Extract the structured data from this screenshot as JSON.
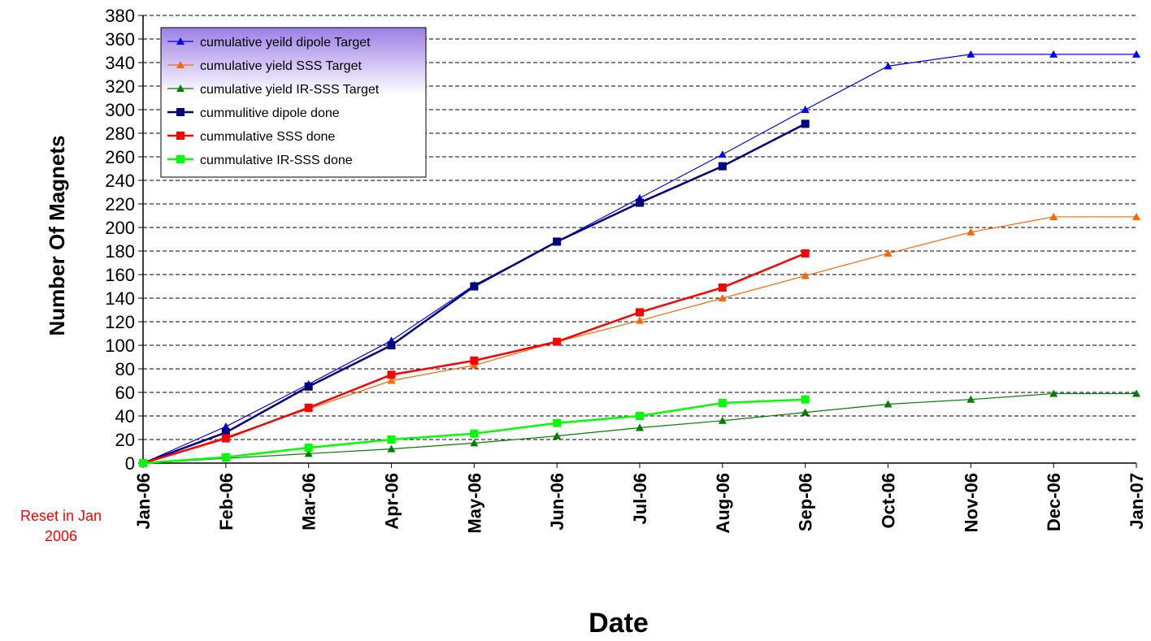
{
  "note": {
    "line1": "Reset in Jan",
    "line2": "2006"
  },
  "chart_data": {
    "type": "line",
    "title": "",
    "xlabel": "Date",
    "ylabel": "Number Of Magnets",
    "x": [
      "Jan-06",
      "Feb-06",
      "Mar-06",
      "Apr-06",
      "May-06",
      "Jun-06",
      "Jul-06",
      "Aug-06",
      "Sep-06",
      "Oct-06",
      "Nov-06",
      "Dec-06",
      "Jan-07"
    ],
    "ylim": [
      0,
      380
    ],
    "ytick_step": 20,
    "grid": "horizontal dashed",
    "legend_position": "top-left",
    "series": [
      {
        "name": "cumulative yeild dipole Target",
        "color": "#0000ff",
        "marker": "triangle",
        "line": "thin",
        "values": [
          0,
          31,
          67,
          104,
          151,
          188,
          225,
          262,
          300,
          337,
          347,
          347,
          347
        ]
      },
      {
        "name": "cumulative yield SSS Target",
        "color": "#ff6600",
        "marker": "triangle",
        "line": "thin",
        "values": [
          0,
          22,
          46,
          70,
          83,
          103,
          121,
          140,
          159,
          178,
          196,
          209,
          209
        ]
      },
      {
        "name": "cumulative yield IR-SSS Target",
        "color": "#008000",
        "marker": "triangle",
        "line": "thin",
        "values": [
          0,
          4,
          8,
          12,
          17,
          23,
          30,
          36,
          43,
          50,
          54,
          59,
          59
        ]
      },
      {
        "name": "cummulitive dipole done",
        "color": "#000080",
        "marker": "square",
        "line": "thick",
        "values": [
          0,
          26,
          65,
          100,
          150,
          188,
          221,
          252,
          288,
          null,
          null,
          null,
          null
        ]
      },
      {
        "name": "cummulative  SSS done",
        "color": "#ff0000",
        "marker": "square",
        "line": "thick",
        "values": [
          0,
          21,
          47,
          75,
          87,
          103,
          128,
          149,
          178,
          null,
          null,
          null,
          null
        ]
      },
      {
        "name": "cummulative IR-SSS done",
        "color": "#00ff00",
        "marker": "square",
        "line": "thick",
        "values": [
          0,
          5,
          13,
          20,
          25,
          34,
          40,
          51,
          54,
          null,
          null,
          null,
          null
        ]
      }
    ]
  }
}
